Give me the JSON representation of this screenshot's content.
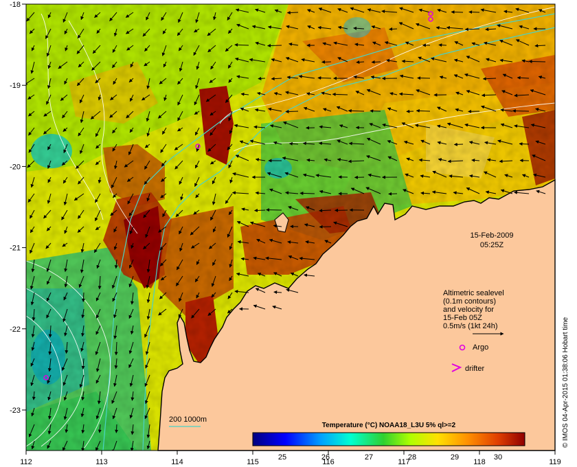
{
  "map": {
    "date": "15-Feb-2009",
    "time": "05:25Z",
    "x_ticks": [
      "112",
      "113",
      "114",
      "115",
      "116",
      "117",
      "118",
      "119"
    ],
    "y_ticks": [
      "-18",
      "-19",
      "-20",
      "-21",
      "-22",
      "-23"
    ],
    "legend": {
      "line1": "Altimetric sealevel",
      "line2": "(0.1m contours)",
      "line3": "and velocity for",
      "line4": "15-Feb 05Z",
      "line5": "0.5m/s (1kt 24h)",
      "argo_label": "Argo",
      "drifter_label": "drifter"
    },
    "isobath_label": "200  1000m",
    "colorbar": {
      "title": "Temperature (°C) NOAA18_L3U 5% ql>=2",
      "ticks": [
        "25",
        "26",
        "27",
        "28",
        "29",
        "30"
      ]
    },
    "credit": "© IMOS 04-Apr-2015 01:38:06 Hobart time",
    "colors": {
      "land": "#fcc89c",
      "isobath": "#4ad3c6",
      "contour": "#ffffff",
      "argo": "#e000e0",
      "drifter": "#e000e0"
    }
  }
}
